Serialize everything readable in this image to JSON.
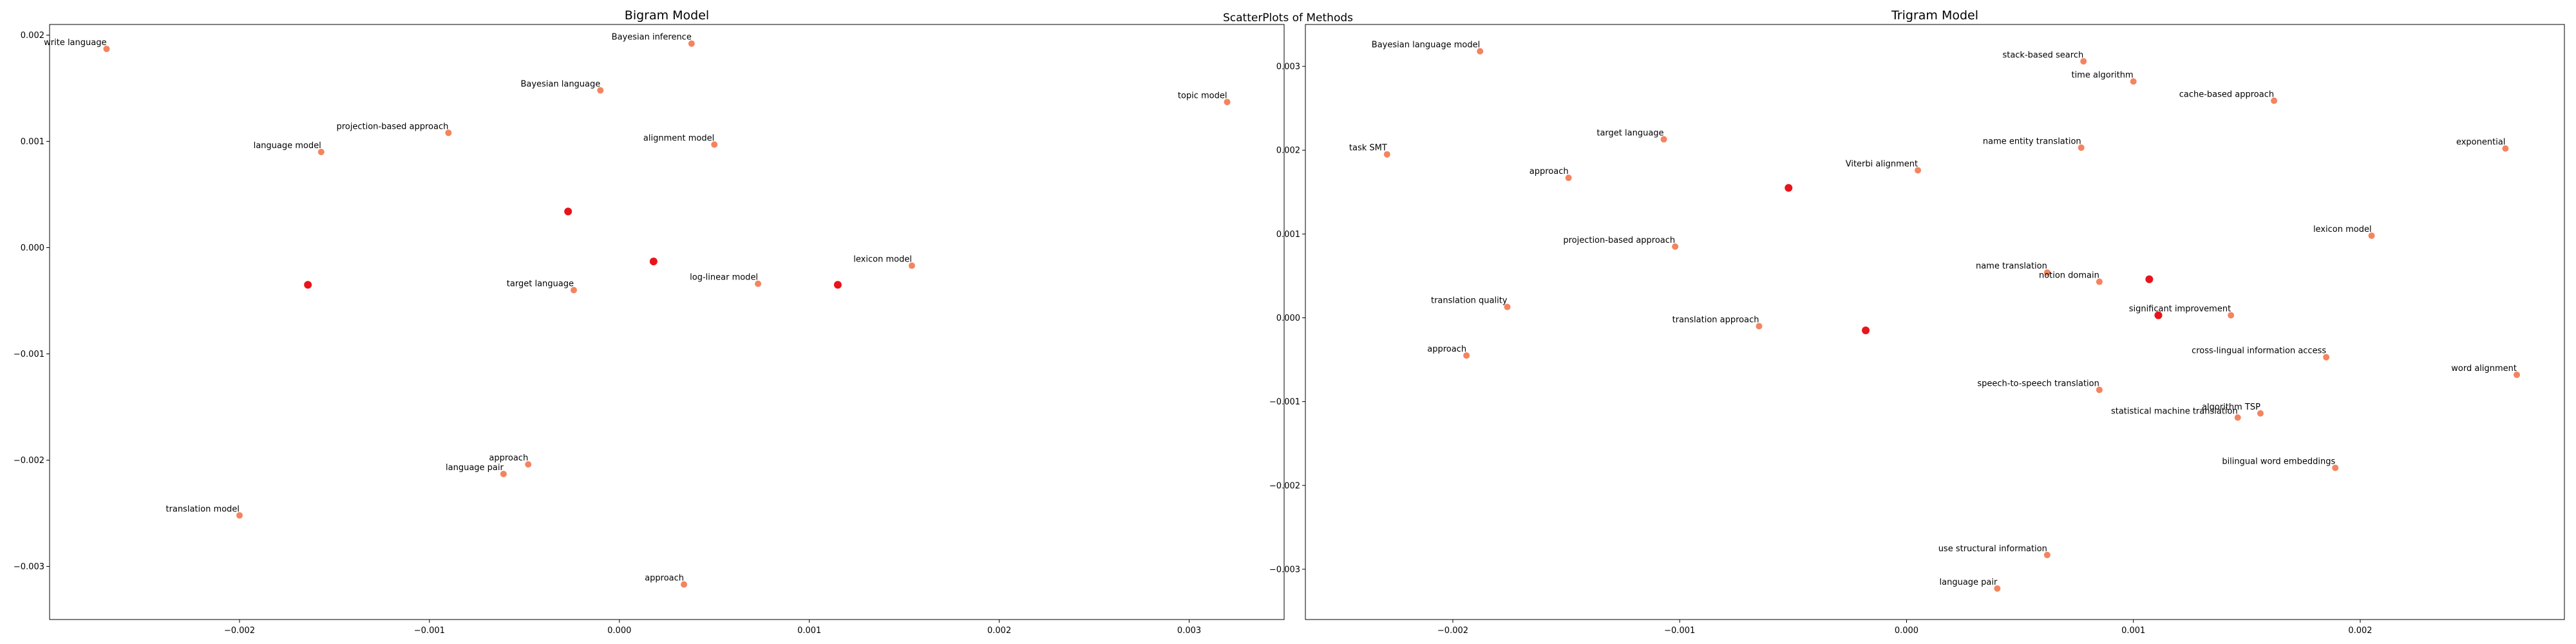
{
  "suptitle": "ScatterPlots of Methods",
  "colors": {
    "point": "#f4845f",
    "centroid": "#e8141c"
  },
  "chart_data": [
    {
      "type": "scatter",
      "title": "Bigram Model",
      "xlim": [
        -0.003,
        0.0035
      ],
      "ylim": [
        -0.0035,
        0.0021
      ],
      "xticks": [
        -0.002,
        -0.001,
        0.0,
        0.001,
        0.002,
        0.003
      ],
      "xtick_labels": [
        "−0.002",
        "−0.001",
        "0.000",
        "0.001",
        "0.002",
        "0.003"
      ],
      "yticks": [
        -0.003,
        -0.002,
        -0.001,
        0.0,
        0.001,
        0.002
      ],
      "ytick_labels": [
        "−0.003",
        "−0.002",
        "−0.001",
        "0.000",
        "0.001",
        "0.002"
      ],
      "points": [
        {
          "label": "write language",
          "x": -0.0027,
          "y": 0.00187
        },
        {
          "label": "Bayesian inference",
          "x": 0.00038,
          "y": 0.00192
        },
        {
          "label": "Bayesian language",
          "x": -0.0001,
          "y": 0.00148
        },
        {
          "label": "topic model",
          "x": 0.0032,
          "y": 0.00137
        },
        {
          "label": "projection-based approach",
          "x": -0.0009,
          "y": 0.00108
        },
        {
          "label": "alignment model",
          "x": 0.0005,
          "y": 0.00097
        },
        {
          "label": "language model",
          "x": -0.00157,
          "y": 0.0009
        },
        {
          "label": "lexicon model",
          "x": 0.00154,
          "y": -0.00017
        },
        {
          "label": "log-linear model",
          "x": 0.00073,
          "y": -0.00034
        },
        {
          "label": "target language",
          "x": -0.00024,
          "y": -0.0004
        },
        {
          "label": "approach",
          "x": -0.00048,
          "y": -0.00204
        },
        {
          "label": "language pair",
          "x": -0.00061,
          "y": -0.00213
        },
        {
          "label": "translation model",
          "x": -0.002,
          "y": -0.00252
        },
        {
          "label": "approach",
          "x": 0.00034,
          "y": -0.00317
        }
      ],
      "centroids": [
        {
          "x": -0.00027,
          "y": 0.00034
        },
        {
          "x": 0.00018,
          "y": -0.00013
        },
        {
          "x": -0.00164,
          "y": -0.00035
        },
        {
          "x": 0.00115,
          "y": -0.00035
        }
      ]
    },
    {
      "type": "scatter",
      "title": "Trigram Model",
      "xlim": [
        -0.00265,
        0.0029
      ],
      "ylim": [
        -0.0036,
        0.0035
      ],
      "xticks": [
        -0.002,
        -0.001,
        0.0,
        0.001,
        0.002
      ],
      "xtick_labels": [
        "−0.002",
        "−0.001",
        "0.000",
        "0.001",
        "0.002"
      ],
      "yticks": [
        -0.003,
        -0.002,
        -0.001,
        0.0,
        0.001,
        0.002,
        0.003
      ],
      "ytick_labels": [
        "−0.003",
        "−0.002",
        "−0.001",
        "0.000",
        "0.001",
        "0.002",
        "0.003"
      ],
      "points": [
        {
          "label": "Bayesian language model",
          "x": -0.00188,
          "y": 0.00318
        },
        {
          "label": "stack-based search",
          "x": 0.00078,
          "y": 0.00306
        },
        {
          "label": "time algorithm",
          "x": 0.001,
          "y": 0.00282
        },
        {
          "label": "cache-based approach",
          "x": 0.00162,
          "y": 0.00259
        },
        {
          "label": "target language",
          "x": -0.00107,
          "y": 0.00213
        },
        {
          "label": "task SMT",
          "x": -0.00229,
          "y": 0.00195
        },
        {
          "label": "name entity translation",
          "x": 0.00077,
          "y": 0.00203
        },
        {
          "label": "exponential",
          "x": 0.00264,
          "y": 0.00202
        },
        {
          "label": "approach",
          "x": -0.00149,
          "y": 0.00167
        },
        {
          "label": "Viterbi alignment",
          "x": 5e-05,
          "y": 0.00176
        },
        {
          "label": "lexicon model",
          "x": 0.00205,
          "y": 0.00098
        },
        {
          "label": "projection-based approach",
          "x": -0.00102,
          "y": 0.00085
        },
        {
          "label": "name translation",
          "x": 0.00062,
          "y": 0.00054
        },
        {
          "label": "notion domain",
          "x": 0.00085,
          "y": 0.00043
        },
        {
          "label": "translation quality",
          "x": -0.00176,
          "y": 0.00013
        },
        {
          "label": "significant improvement",
          "x": 0.00143,
          "y": 3e-05
        },
        {
          "label": "translation approach",
          "x": -0.00065,
          "y": -0.0001
        },
        {
          "label": "approach",
          "x": -0.00194,
          "y": -0.00045
        },
        {
          "label": "cross-lingual information access",
          "x": 0.00185,
          "y": -0.00047
        },
        {
          "label": "word alignment",
          "x": 0.00269,
          "y": -0.00068
        },
        {
          "label": "speech-to-speech translation",
          "x": 0.00085,
          "y": -0.00086
        },
        {
          "label": "algorithm TSP",
          "x": 0.00156,
          "y": -0.00114
        },
        {
          "label": "statistical machine translation",
          "x": 0.00146,
          "y": -0.00119
        },
        {
          "label": "bilingual word embeddings",
          "x": 0.00189,
          "y": -0.00179
        },
        {
          "label": "use structural information",
          "x": 0.00062,
          "y": -0.00283
        },
        {
          "label": "language pair",
          "x": 0.0004,
          "y": -0.00323
        }
      ],
      "centroids": [
        {
          "x": -0.00052,
          "y": 0.00155
        },
        {
          "x": 0.00107,
          "y": 0.00046
        },
        {
          "x": 0.00111,
          "y": 3e-05
        },
        {
          "x": -0.00018,
          "y": -0.00015
        }
      ]
    }
  ]
}
